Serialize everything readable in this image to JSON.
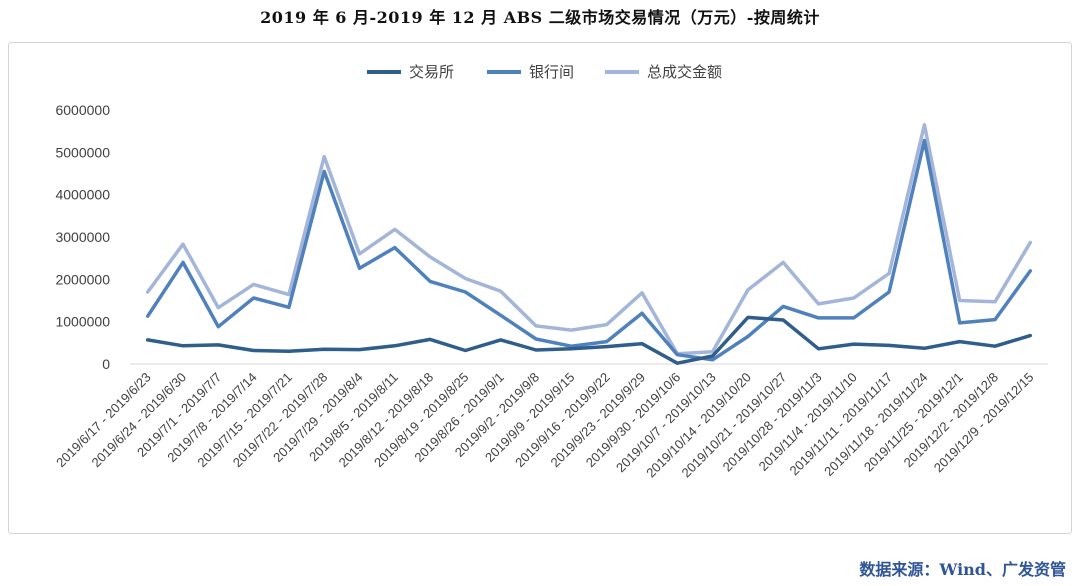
{
  "chart_data": {
    "type": "line",
    "title": "2019 年 6 月-2019 年 12 月 ABS 二级市场交易情况（万元）-按周统计",
    "xlabel": "",
    "ylabel": "",
    "ylim": [
      0,
      6000000
    ],
    "yticks": [
      "0",
      "1000000",
      "2000000",
      "3000000",
      "4000000",
      "5000000",
      "6000000"
    ],
    "grid": false,
    "legend_position": "top",
    "categories": [
      "2019/6/17 - 2019/6/23",
      "2019/6/24 - 2019/6/30",
      "2019/7/1 - 2019/7/7",
      "2019/7/8 - 2019/7/14",
      "2019/7/15 - 2019/7/21",
      "2019/7/22 - 2019/7/28",
      "2019/7/29 - 2019/8/4",
      "2019/8/5 - 2019/8/11",
      "2019/8/12 - 2019/8/18",
      "2019/8/19 - 2019/8/25",
      "2019/8/26 - 2019/9/1",
      "2019/9/2 - 2019/9/8",
      "2019/9/9 - 2019/9/15",
      "2019/9/16 - 2019/9/22",
      "2019/9/23 - 2019/9/29",
      "2019/9/30 - 2019/10/6",
      "2019/10/7 - 2019/10/13",
      "2019/10/14 - 2019/10/20",
      "2019/10/21 - 2019/10/27",
      "2019/10/28 - 2019/11/3",
      "2019/11/4 - 2019/11/10",
      "2019/11/11 - 2019/11/17",
      "2019/11/18 - 2019/11/24",
      "2019/11/25 - 2019/12/1",
      "2019/12/2 - 2019/12/8",
      "2019/12/9 - 2019/12/15"
    ],
    "series": [
      {
        "name": "交易所",
        "color": "#2f5d8c",
        "values": [
          570000,
          430000,
          450000,
          320000,
          300000,
          350000,
          340000,
          430000,
          580000,
          320000,
          570000,
          330000,
          360000,
          410000,
          480000,
          20000,
          190000,
          1100000,
          1040000,
          360000,
          470000,
          440000,
          370000,
          530000,
          420000,
          670000
        ]
      },
      {
        "name": "银行间",
        "color": "#4f81bd",
        "values": [
          1130000,
          2400000,
          880000,
          1560000,
          1340000,
          4550000,
          2260000,
          2750000,
          1950000,
          1700000,
          1150000,
          590000,
          420000,
          530000,
          1200000,
          220000,
          100000,
          650000,
          1360000,
          1090000,
          1090000,
          1700000,
          5280000,
          970000,
          1050000,
          2200000
        ]
      },
      {
        "name": "总成交金额",
        "color": "#a3b5d9",
        "values": [
          1700000,
          2830000,
          1330000,
          1880000,
          1640000,
          4900000,
          2600000,
          3180000,
          2530000,
          2020000,
          1720000,
          900000,
          800000,
          930000,
          1680000,
          240000,
          290000,
          1750000,
          2400000,
          1420000,
          1560000,
          2140000,
          5650000,
          1500000,
          1470000,
          2870000
        ]
      }
    ]
  },
  "source_text": "数据来源：Wind、广发资管"
}
